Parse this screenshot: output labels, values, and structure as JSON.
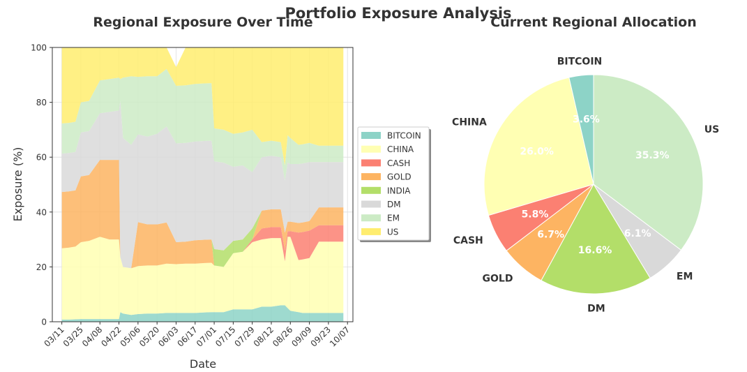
{
  "suptitle": "Portfolio Exposure Analysis",
  "chart_data": [
    {
      "type": "area",
      "title": "Regional Exposure Over Time",
      "xlabel": "Date",
      "ylabel": "Exposure (%)",
      "ylim": [
        0,
        100
      ],
      "yticks": [
        0,
        20,
        40,
        60,
        80,
        100
      ],
      "grid": true,
      "stacked": true,
      "legend_placement": "right, outside",
      "x_tick_labels": [
        "03/11",
        "03/25",
        "04/08",
        "04/22",
        "05/06",
        "05/20",
        "06/03",
        "06/17",
        "07/01",
        "07/15",
        "07/29",
        "08/12",
        "08/26",
        "09/09",
        "09/23",
        "10/07"
      ],
      "dates": [
        "03/11",
        "03/16",
        "03/21",
        "03/25",
        "03/31",
        "04/08",
        "04/15",
        "04/22",
        "04/23",
        "04/25",
        "05/01",
        "05/06",
        "05/13",
        "05/20",
        "05/27",
        "06/03",
        "06/10",
        "06/17",
        "06/24",
        "06/29",
        "07/01",
        "07/08",
        "07/15",
        "07/22",
        "07/29",
        "08/05",
        "08/12",
        "08/19",
        "08/22",
        "08/24",
        "08/26",
        "09/01",
        "09/04",
        "09/09",
        "09/16",
        "09/23",
        "09/30",
        "10/04"
      ],
      "series": [
        {
          "name": "BITCOIN",
          "color": "#8dd3c7",
          "values": [
            0.8,
            0.8,
            0.9,
            1.0,
            1.0,
            1.0,
            1.0,
            1.0,
            3.5,
            3.0,
            2.5,
            2.8,
            3.0,
            3.0,
            3.2,
            3.2,
            3.2,
            3.2,
            3.4,
            3.5,
            3.5,
            3.5,
            4.5,
            4.5,
            4.5,
            5.5,
            5.5,
            6.0,
            6.0,
            5.0,
            4.0,
            3.5,
            3.2,
            3.2,
            3.2,
            3.2,
            3.2,
            3.2
          ]
        },
        {
          "name": "CHINA",
          "color": "#ffffb3",
          "values": [
            26.0,
            26.2,
            26.5,
            28.0,
            28.5,
            30.0,
            29.0,
            29.0,
            20.0,
            17.0,
            17.0,
            17.5,
            17.5,
            17.5,
            18.0,
            17.8,
            18.0,
            18.0,
            18.0,
            18.0,
            17.0,
            16.5,
            20.5,
            21.0,
            24.5,
            24.5,
            25.0,
            24.5,
            16.0,
            26.0,
            27.0,
            19.0,
            19.5,
            20.0,
            26.0,
            26.0,
            26.0,
            26.0
          ]
        },
        {
          "name": "CASH",
          "color": "#fb8072",
          "values": [
            0,
            0,
            0,
            0,
            0,
            0,
            0,
            0,
            0,
            0,
            0,
            0,
            0,
            0,
            0,
            0,
            0,
            0,
            0,
            0,
            0,
            0,
            0,
            0,
            1,
            4,
            4,
            4,
            4,
            2,
            2,
            10,
            10,
            10,
            6,
            6,
            6,
            6
          ]
        },
        {
          "name": "GOLD",
          "color": "#fdb462",
          "values": [
            20.5,
            20.5,
            20.5,
            24,
            24,
            28,
            29,
            29,
            0,
            0,
            0,
            16,
            15,
            15,
            15,
            8.0,
            8.0,
            8.5,
            8.5,
            8.5,
            0,
            0,
            0,
            0,
            0,
            6.5,
            6.5,
            6.5,
            6.5,
            3.5,
            3.5,
            3.5,
            3.5,
            3.5,
            6.5,
            6.5,
            6.5,
            6.5
          ]
        },
        {
          "name": "INDIA",
          "color": "#b3de69",
          "values": [
            0,
            0,
            0,
            0,
            0,
            0,
            0,
            0,
            0,
            0,
            0,
            0,
            0,
            0,
            0,
            0,
            0,
            0,
            0,
            0,
            6.0,
            6.0,
            4.5,
            4.5,
            4.0,
            0,
            0,
            0,
            0,
            0,
            0,
            0,
            0,
            0,
            0,
            0,
            0,
            0
          ]
        },
        {
          "name": "DM",
          "color": "#d9d9d9",
          "values": [
            14.0,
            14.0,
            14.0,
            16.0,
            16.0,
            17.0,
            17.5,
            18.0,
            57.0,
            47.0,
            45.0,
            32.0,
            32.0,
            33.0,
            35.0,
            36.0,
            36.0,
            36.0,
            36.0,
            36.0,
            32.0,
            32.0,
            27.0,
            27.0,
            20.5,
            19.5,
            19.5,
            19.0,
            19.0,
            21.5,
            21.0,
            21.5,
            21.5,
            21.5,
            16.5,
            16.5,
            16.5,
            16.5
          ]
        },
        {
          "name": "EM",
          "color": "#ccebc5",
          "values": [
            11.0,
            11.0,
            11.0,
            11.0,
            11.0,
            12.0,
            12.0,
            12.0,
            8.0,
            22.0,
            25.0,
            21.0,
            22.0,
            21.0,
            21.0,
            21.0,
            21.0,
            21.0,
            21.0,
            21.0,
            12.0,
            12.0,
            12.0,
            12.0,
            15.5,
            5.5,
            5.5,
            5.5,
            5.5,
            10.0,
            9.5,
            7.0,
            7.0,
            7.0,
            6.0,
            6.0,
            6.0,
            6.0
          ]
        },
        {
          "name": "US",
          "color": "#ffed6f",
          "values": [
            27.7,
            27.5,
            27.1,
            20.0,
            19.5,
            12.0,
            11.5,
            11.0,
            11.5,
            11.0,
            10.5,
            10.7,
            10.5,
            10.5,
            7.8,
            6.8,
            13.8,
            13.3,
            13.1,
            13.0,
            29.5,
            30.0,
            31.5,
            31.0,
            30.0,
            34.5,
            34.0,
            34.5,
            43.0,
            32.0,
            33.0,
            35.5,
            35.3,
            34.8,
            35.8,
            35.8,
            35.8,
            35.8
          ]
        }
      ]
    },
    {
      "type": "pie",
      "title": "Current Regional Allocation",
      "start_angle_deg": 90,
      "direction": "clockwise",
      "slices": [
        {
          "label": "US",
          "value": 35.3,
          "pct_label": "35.3%",
          "color": "#ccebc5"
        },
        {
          "label": "EM",
          "value": 6.1,
          "pct_label": "6.1%",
          "color": "#d9d9d9"
        },
        {
          "label": "DM",
          "value": 16.6,
          "pct_label": "16.6%",
          "color": "#b3de69"
        },
        {
          "label": "GOLD",
          "value": 6.7,
          "pct_label": "6.7%",
          "color": "#fdb462"
        },
        {
          "label": "CASH",
          "value": 5.8,
          "pct_label": "5.8%",
          "color": "#fb8072"
        },
        {
          "label": "CHINA",
          "value": 26.0,
          "pct_label": "26.0%",
          "color": "#ffffb3"
        },
        {
          "label": "BITCOIN",
          "value": 3.6,
          "pct_label": "3.6%",
          "color": "#8dd3c7"
        }
      ]
    }
  ]
}
